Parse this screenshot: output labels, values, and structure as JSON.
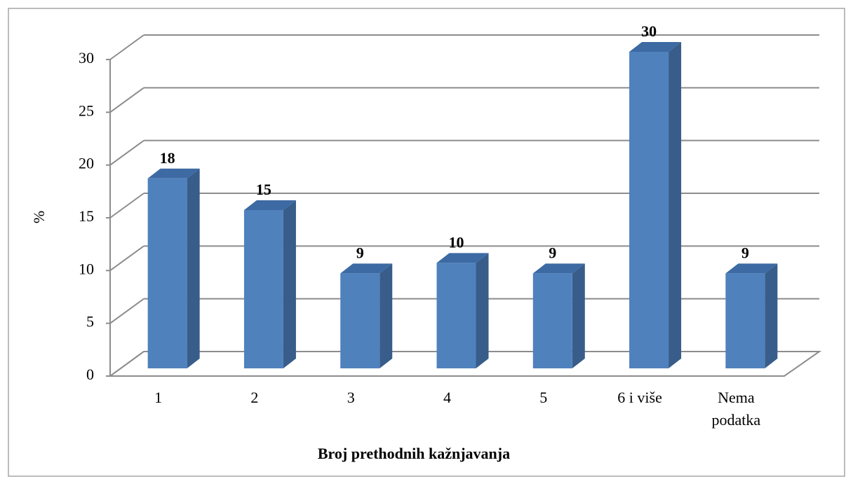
{
  "chart_data": {
    "type": "bar3d",
    "categories": [
      "1",
      "2",
      "3",
      "4",
      "5",
      "6 i više",
      "Nema podatka"
    ],
    "values": [
      18,
      15,
      9,
      10,
      9,
      30,
      9
    ],
    "color": "#4f81bd",
    "xlabel": "Broj prethodnih kažnjavanja",
    "ylabel": "%",
    "ylim": [
      0,
      30
    ],
    "yticks": [
      0,
      5,
      10,
      15,
      20,
      25,
      30
    ],
    "grid": true
  }
}
